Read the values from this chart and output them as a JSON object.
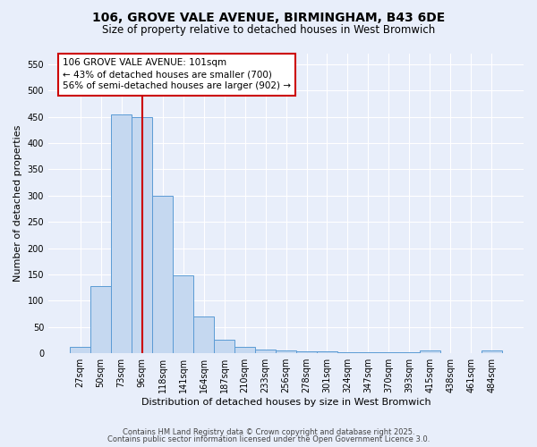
{
  "title_line1": "106, GROVE VALE AVENUE, BIRMINGHAM, B43 6DE",
  "title_line2": "Size of property relative to detached houses in West Bromwich",
  "xlabel": "Distribution of detached houses by size in West Bromwich",
  "ylabel": "Number of detached properties",
  "categories": [
    "27sqm",
    "50sqm",
    "73sqm",
    "96sqm",
    "118sqm",
    "141sqm",
    "164sqm",
    "187sqm",
    "210sqm",
    "233sqm",
    "256sqm",
    "278sqm",
    "301sqm",
    "324sqm",
    "347sqm",
    "370sqm",
    "393sqm",
    "415sqm",
    "438sqm",
    "461sqm",
    "484sqm"
  ],
  "values": [
    13,
    128,
    455,
    450,
    300,
    148,
    70,
    26,
    13,
    7,
    6,
    3,
    4,
    2,
    2,
    2,
    2,
    5,
    1,
    1,
    5
  ],
  "bar_color": "#c5d8f0",
  "bar_edge_color": "#5b9bd5",
  "vline_color": "#cc0000",
  "vline_pos": 3.5,
  "annotation_text": "106 GROVE VALE AVENUE: 101sqm\n← 43% of detached houses are smaller (700)\n56% of semi-detached houses are larger (902) →",
  "annotation_box_color": "#ffffff",
  "annotation_box_edge_color": "#cc0000",
  "ylim": [
    0,
    570
  ],
  "yticks": [
    0,
    50,
    100,
    150,
    200,
    250,
    300,
    350,
    400,
    450,
    500,
    550
  ],
  "bg_color": "#e8eefa",
  "grid_color": "#ffffff",
  "footer_line1": "Contains HM Land Registry data © Crown copyright and database right 2025.",
  "footer_line2": "Contains public sector information licensed under the Open Government Licence 3.0."
}
